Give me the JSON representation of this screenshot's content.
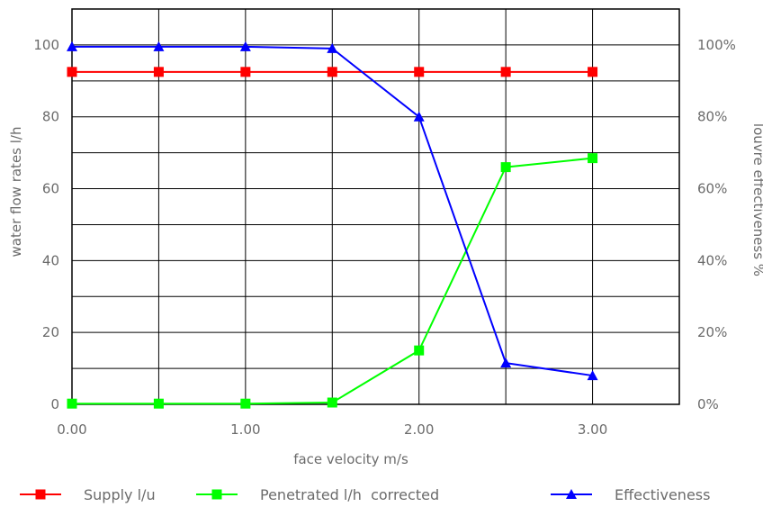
{
  "chart_data": {
    "type": "line",
    "xlabel": "face velocity  m/s",
    "ylabel": "water flow rates l/h",
    "y2label": "louvre effectiveness %",
    "xlim": [
      0,
      3.5
    ],
    "ylim": [
      0,
      110
    ],
    "y2lim": [
      0,
      1.1
    ],
    "x_ticks": [
      "0.00",
      "1.00",
      "2.00",
      "3.00"
    ],
    "x_tick_values": [
      0,
      1,
      2,
      3
    ],
    "y_ticks": [
      "0",
      "20",
      "40",
      "60",
      "80",
      "100"
    ],
    "y_tick_values": [
      0,
      20,
      40,
      60,
      80,
      100
    ],
    "y2_ticks": [
      "0%",
      "20%",
      "40%",
      "60%",
      "80%",
      "100%"
    ],
    "y2_tick_values": [
      0,
      0.2,
      0.4,
      0.6,
      0.8,
      1.0
    ],
    "grid": true,
    "legend_position": "bottom",
    "x": [
      0,
      0.5,
      1.0,
      1.5,
      2.0,
      2.5,
      3.0
    ],
    "series": [
      {
        "name": "Supply l/u",
        "axis": "left",
        "marker": "square",
        "color": "#ff0000",
        "values": [
          92.5,
          92.5,
          92.5,
          92.5,
          92.5,
          92.5,
          92.5
        ]
      },
      {
        "name": "Penetrated l/h  corrected",
        "axis": "left",
        "marker": "square",
        "color": "#00ff00",
        "values": [
          0.2,
          0.2,
          0.2,
          0.5,
          15,
          66,
          68.5
        ]
      },
      {
        "name": "Effectiveness",
        "axis": "right",
        "marker": "triangle",
        "color": "#0000ff",
        "values": [
          0.995,
          0.995,
          0.995,
          0.99,
          0.8,
          0.115,
          0.08
        ]
      }
    ]
  }
}
